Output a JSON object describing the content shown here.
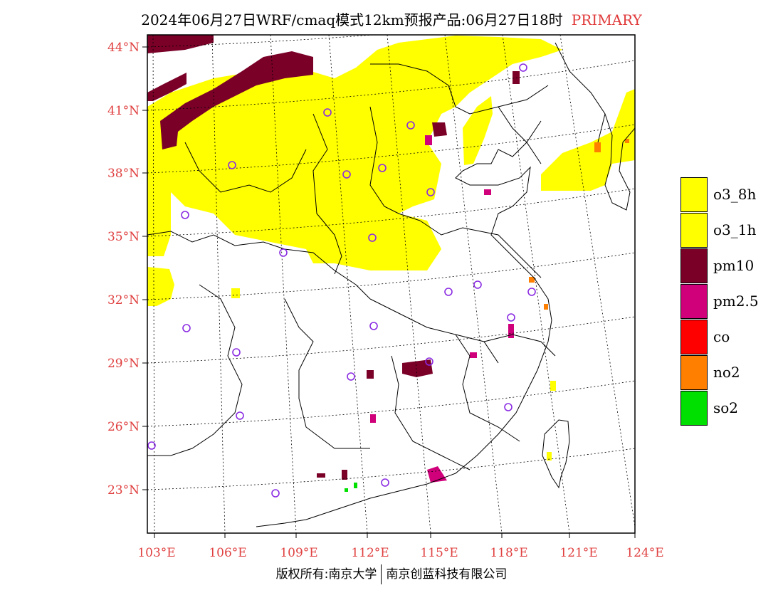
{
  "header": {
    "title": "2024年06月27日WRF/cmaq模式12km预报产品:06月27日18时",
    "tag": "PRIMARY"
  },
  "map": {
    "lat_labels": [
      "44°N",
      "41°N",
      "38°N",
      "35°N",
      "32°N",
      "29°N",
      "26°N",
      "23°N"
    ],
    "lon_labels": [
      "103°E",
      "106°E",
      "109°E",
      "112°E",
      "115°E",
      "118°E",
      "121°E",
      "124°E"
    ],
    "colors": {
      "o3_8h": "#ffff00",
      "o3_1h": "#ffff00",
      "pm10": "#7a0028",
      "pm25": "#d0007a",
      "co": "#ff0000",
      "no2": "#ff7f00",
      "so2": "#00e000",
      "station": "#8a2be2",
      "grid": "#000000",
      "tick": "#e04040"
    }
  },
  "legend": {
    "items": [
      {
        "label": "o3_8h",
        "color": "#ffff00"
      },
      {
        "label": "o3_1h",
        "color": "#ffff00"
      },
      {
        "label": "pm10",
        "color": "#7a0028"
      },
      {
        "label": "pm2.5",
        "color": "#d0007a"
      },
      {
        "label": "co",
        "color": "#ff0000"
      },
      {
        "label": "no2",
        "color": "#ff7f00"
      },
      {
        "label": "so2",
        "color": "#00e000"
      }
    ]
  },
  "footer": {
    "left": "版权所有:南京大学",
    "right": "南京创蓝科技有限公司"
  }
}
